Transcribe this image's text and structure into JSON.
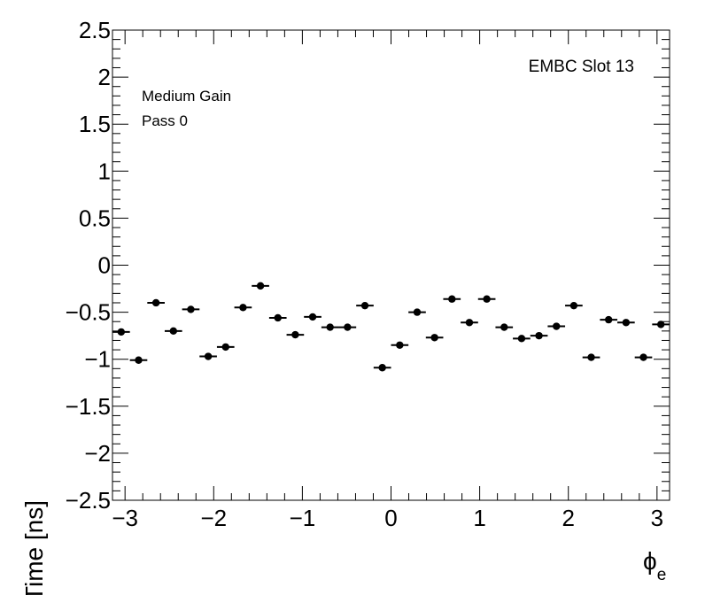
{
  "chart_data": {
    "type": "scatter",
    "title": "",
    "xlabel_main": "ϕ",
    "xlabel_sub": "e",
    "ylabel": "Time [ns]",
    "xlim": [
      -3.1416,
      3.1416
    ],
    "ylim": [
      -2.5,
      2.5
    ],
    "bin_width": 0.19635,
    "x_ticks": [
      -3,
      -2,
      -1,
      0,
      1,
      2,
      3
    ],
    "x_tick_labels": [
      "−3",
      "−2",
      "−1",
      "0",
      "1",
      "2",
      "3"
    ],
    "y_ticks": [
      -2.5,
      -2,
      -1.5,
      -1,
      -0.5,
      0,
      0.5,
      1,
      1.5,
      2,
      2.5
    ],
    "y_tick_labels": [
      "−2.5",
      "−2",
      "−1.5",
      "−1",
      "−0.5",
      "0",
      "0.5",
      "1",
      "1.5",
      "2",
      "2.5"
    ],
    "annotations": {
      "gain": "Medium Gain",
      "pass": "Pass 0",
      "slot": "EMBC Slot 13"
    },
    "points": [
      {
        "x": -3.0434,
        "y": -0.71
      },
      {
        "x": -2.8471,
        "y": -1.01
      },
      {
        "x": -2.6507,
        "y": -0.4
      },
      {
        "x": -2.4544,
        "y": -0.7
      },
      {
        "x": -2.258,
        "y": -0.47
      },
      {
        "x": -2.0617,
        "y": -0.97
      },
      {
        "x": -1.8653,
        "y": -0.87
      },
      {
        "x": -1.669,
        "y": -0.45
      },
      {
        "x": -1.4726,
        "y": -0.22
      },
      {
        "x": -1.2763,
        "y": -0.56
      },
      {
        "x": -1.0799,
        "y": -0.74
      },
      {
        "x": -0.8836,
        "y": -0.55
      },
      {
        "x": -0.6872,
        "y": -0.66
      },
      {
        "x": -0.4909,
        "y": -0.66
      },
      {
        "x": -0.2945,
        "y": -0.43
      },
      {
        "x": -0.0982,
        "y": -1.09
      },
      {
        "x": 0.0982,
        "y": -0.85
      },
      {
        "x": 0.2945,
        "y": -0.5
      },
      {
        "x": 0.4909,
        "y": -0.77
      },
      {
        "x": 0.6872,
        "y": -0.36
      },
      {
        "x": 0.8836,
        "y": -0.61
      },
      {
        "x": 1.0799,
        "y": -0.36
      },
      {
        "x": 1.2763,
        "y": -0.66
      },
      {
        "x": 1.4726,
        "y": -0.78
      },
      {
        "x": 1.669,
        "y": -0.75
      },
      {
        "x": 1.8653,
        "y": -0.65
      },
      {
        "x": 2.0617,
        "y": -0.43
      },
      {
        "x": 2.258,
        "y": -0.98
      },
      {
        "x": 2.4544,
        "y": -0.58
      },
      {
        "x": 2.6507,
        "y": -0.61
      },
      {
        "x": 2.8471,
        "y": -0.98
      },
      {
        "x": 3.0434,
        "y": -0.63
      }
    ]
  }
}
